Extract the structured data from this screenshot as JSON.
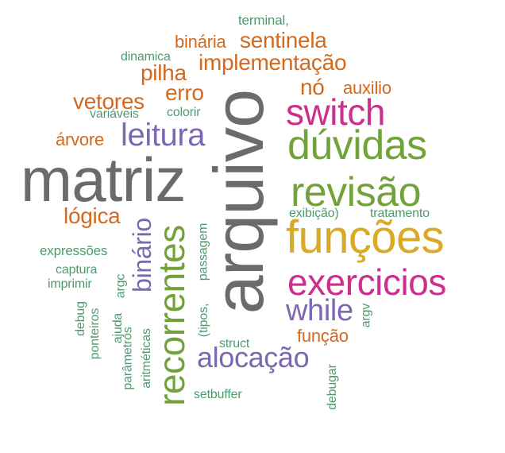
{
  "palette": {
    "gray": "#6b6b6b",
    "orange": "#d2691e",
    "green": "#72a33a",
    "magenta": "#cc2f8c",
    "purple": "#7a68b0",
    "gold": "#d9a928",
    "teal": "#4e9a6e"
  },
  "words": [
    {
      "text": "matriz",
      "color": "gray"
    },
    {
      "text": "arquivo",
      "color": "gray"
    },
    {
      "text": "funções",
      "color": "gold"
    },
    {
      "text": "dúvidas",
      "color": "green"
    },
    {
      "text": "revisão",
      "color": "green"
    },
    {
      "text": "exercicios",
      "color": "magenta"
    },
    {
      "text": "switch",
      "color": "magenta"
    },
    {
      "text": "recorrentes",
      "color": "green"
    },
    {
      "text": "leitura",
      "color": "purple"
    },
    {
      "text": "while",
      "color": "purple"
    },
    {
      "text": "alocação",
      "color": "purple"
    },
    {
      "text": "binário",
      "color": "purple"
    },
    {
      "text": "implementação",
      "color": "orange"
    },
    {
      "text": "sentinela",
      "color": "orange"
    },
    {
      "text": "vetores",
      "color": "orange"
    },
    {
      "text": "pilha",
      "color": "orange"
    },
    {
      "text": "erro",
      "color": "orange"
    },
    {
      "text": "nó",
      "color": "orange"
    },
    {
      "text": "lógica",
      "color": "orange"
    },
    {
      "text": "binária",
      "color": "orange"
    },
    {
      "text": "auxilio",
      "color": "orange"
    },
    {
      "text": "árvore",
      "color": "orange"
    },
    {
      "text": "função",
      "color": "orange"
    },
    {
      "text": "terminal,",
      "color": "teal"
    },
    {
      "text": "dinamica",
      "color": "teal"
    },
    {
      "text": "colorir",
      "color": "teal"
    },
    {
      "text": "variáveis",
      "color": "teal"
    },
    {
      "text": "expressões",
      "color": "teal"
    },
    {
      "text": "exibição)",
      "color": "teal"
    },
    {
      "text": "tratamento",
      "color": "teal"
    },
    {
      "text": "captura",
      "color": "teal"
    },
    {
      "text": "imprimir",
      "color": "teal"
    },
    {
      "text": "argc",
      "color": "teal"
    },
    {
      "text": "passagem",
      "color": "teal"
    },
    {
      "text": "(tipos,",
      "color": "teal"
    },
    {
      "text": "struct",
      "color": "teal"
    },
    {
      "text": "debug",
      "color": "teal"
    },
    {
      "text": "ponteiros",
      "color": "teal"
    },
    {
      "text": "ajuda",
      "color": "teal"
    },
    {
      "text": "parâmetros",
      "color": "teal"
    },
    {
      "text": "aritméticas",
      "color": "teal"
    },
    {
      "text": "setbuffer",
      "color": "teal"
    },
    {
      "text": "argv",
      "color": "teal"
    },
    {
      "text": "debugar",
      "color": "teal"
    }
  ]
}
